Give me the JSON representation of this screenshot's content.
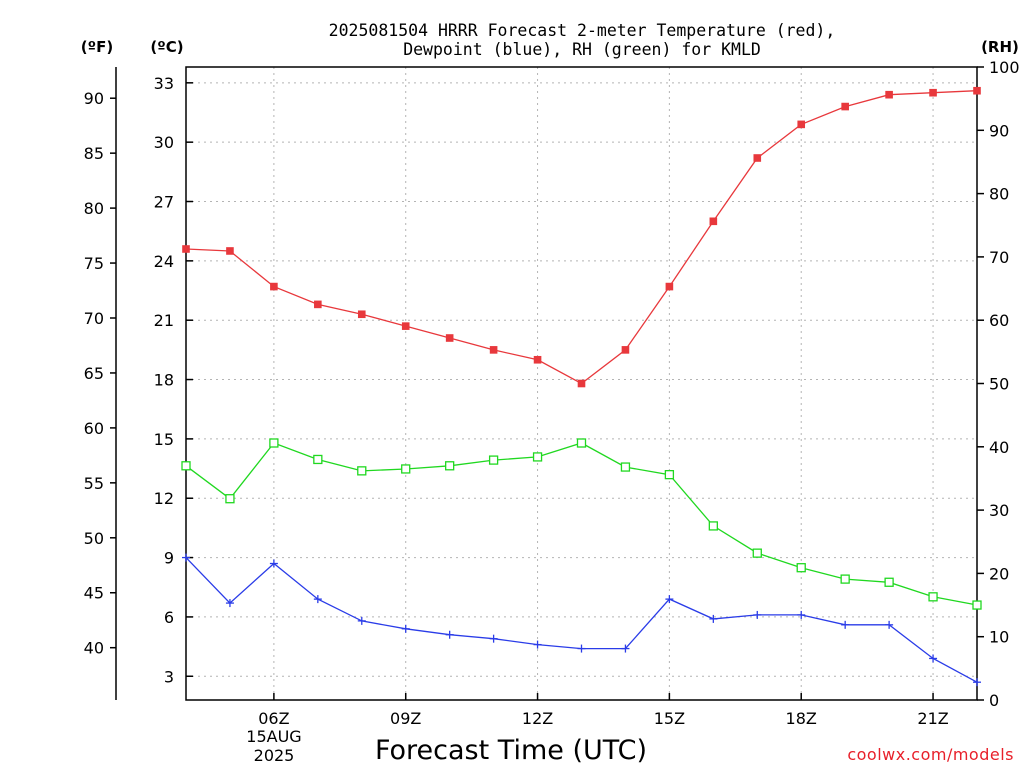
{
  "chart_data": {
    "type": "line",
    "title_line1": "2025081504 HRRR Forecast 2-meter Temperature (red),",
    "title_line2": "Dewpoint (blue), RH (green) for KMLD",
    "xlabel": "Forecast Time (UTC)",
    "credit": "coolwx.com/models",
    "units": {
      "fahrenheit": "(ºF)",
      "celsius": "(ºC)",
      "rh": "(RH)"
    },
    "x_ticks": [
      "06Z",
      "09Z",
      "12Z",
      "15Z",
      "18Z",
      "21Z"
    ],
    "x_tick_hours": [
      6,
      9,
      12,
      15,
      18,
      21
    ],
    "date_label": [
      "15AUG",
      "2025"
    ],
    "xlim": [
      4,
      22
    ],
    "celsius_ticks": [
      3,
      6,
      9,
      12,
      15,
      18,
      21,
      24,
      27,
      30,
      33
    ],
    "ylim_celsius": [
      1.8,
      33.8
    ],
    "fahrenheit_ticks": [
      40,
      45,
      50,
      55,
      60,
      65,
      70,
      75,
      80,
      85,
      90
    ],
    "rh_ticks": [
      0,
      10,
      20,
      30,
      40,
      50,
      60,
      70,
      80,
      90,
      100
    ],
    "ylim_rh": [
      0,
      100
    ],
    "hours": [
      4,
      5,
      6,
      7,
      8,
      9,
      10,
      11,
      12,
      13,
      14,
      15,
      16,
      17,
      18,
      19,
      20,
      21,
      22
    ],
    "series": [
      {
        "name": "Temperature",
        "axis": "celsius",
        "color": "#e8383c",
        "marker": "filled-square",
        "values": [
          24.6,
          24.5,
          22.7,
          21.8,
          21.3,
          20.7,
          20.1,
          19.5,
          19.0,
          17.8,
          19.5,
          22.7,
          26.0,
          29.2,
          30.9,
          31.8,
          32.4,
          32.5,
          32.6
        ]
      },
      {
        "name": "Dewpoint",
        "axis": "celsius",
        "color": "#2a3ce8",
        "marker": "plus",
        "values": [
          9.0,
          6.7,
          8.7,
          6.9,
          5.8,
          5.4,
          5.1,
          4.9,
          4.6,
          4.4,
          4.4,
          6.9,
          5.9,
          6.1,
          6.1,
          5.6,
          5.6,
          3.9,
          2.7
        ]
      },
      {
        "name": "Relative Humidity",
        "axis": "rh",
        "color": "#20d820",
        "marker": "open-square",
        "values": [
          37,
          31.8,
          40.6,
          38,
          36.2,
          36.5,
          37,
          37.9,
          38.4,
          40.6,
          36.8,
          35.6,
          27.5,
          23.2,
          20.9,
          19.1,
          18.6,
          16.3,
          15
        ]
      }
    ]
  }
}
